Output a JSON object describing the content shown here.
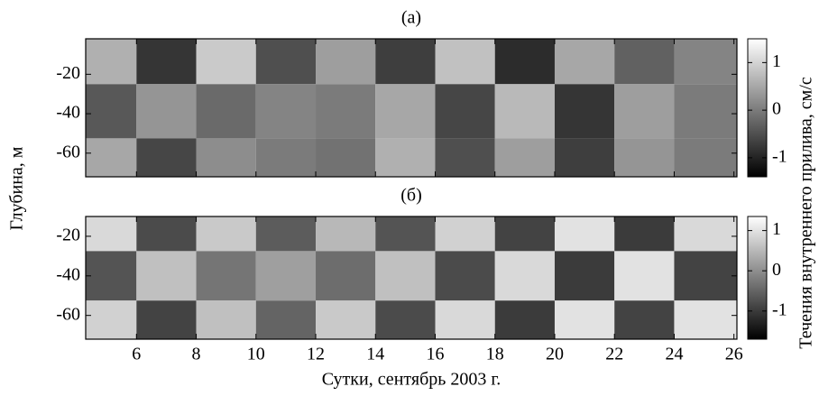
{
  "chart_data": [
    {
      "type": "heatmap",
      "title": "(a)",
      "ylabel": "Глубина, м",
      "colorbar_label": "Течения внутреннего прилива, см/с",
      "x": [
        5,
        7,
        9,
        11,
        13,
        15,
        17,
        19,
        21,
        23,
        25
      ],
      "y": [
        -10,
        -40,
        -65
      ],
      "z": [
        [
          0.6,
          -0.8,
          0.9,
          -0.5,
          0.4,
          -0.7,
          0.8,
          -0.9,
          0.5,
          -0.3,
          0.1
        ],
        [
          -0.4,
          0.3,
          -0.2,
          0.1,
          0.0,
          0.5,
          -0.6,
          0.7,
          -0.8,
          0.4,
          0.0
        ],
        [
          0.5,
          -0.6,
          0.2,
          0.0,
          -0.1,
          0.6,
          -0.5,
          0.4,
          -0.7,
          0.3,
          0.0
        ]
      ],
      "xlim": [
        4.3,
        26.1
      ],
      "ylim": [
        -72,
        -2
      ],
      "xticks": [
        6,
        8,
        10,
        12,
        14,
        16,
        18,
        20,
        22,
        24,
        26
      ],
      "yticks": [
        -20,
        -40,
        -60
      ],
      "clim": [
        -1.4,
        1.5
      ],
      "colorbar_ticks": [
        1,
        0,
        -1
      ]
    },
    {
      "type": "heatmap",
      "title": "(б)",
      "xlabel": "Сутки, сентябрь 2003 г.",
      "x": [
        5,
        7,
        9,
        11,
        13,
        15,
        17,
        19,
        21,
        23,
        25
      ],
      "y": [
        -15,
        -40,
        -65
      ],
      "z": [
        [
          0.9,
          -0.8,
          0.7,
          -0.6,
          0.5,
          -0.7,
          0.8,
          -0.9,
          1.0,
          -1.0,
          0.9
        ],
        [
          -0.7,
          0.6,
          -0.3,
          0.2,
          -0.4,
          0.6,
          -0.8,
          0.9,
          -1.0,
          1.0,
          -0.9
        ],
        [
          0.8,
          -0.9,
          0.6,
          -0.5,
          0.7,
          -0.8,
          0.9,
          -1.0,
          1.0,
          -0.9,
          1.0
        ]
      ],
      "xlim": [
        4.3,
        26.1
      ],
      "ylim": [
        -72,
        -10
      ],
      "xticks": [
        6,
        8,
        10,
        12,
        14,
        16,
        18,
        20,
        22,
        24,
        26
      ],
      "yticks": [
        -20,
        -40,
        -60
      ],
      "clim": [
        -1.7,
        1.35
      ],
      "colorbar_ticks": [
        1,
        0,
        -1
      ]
    }
  ]
}
